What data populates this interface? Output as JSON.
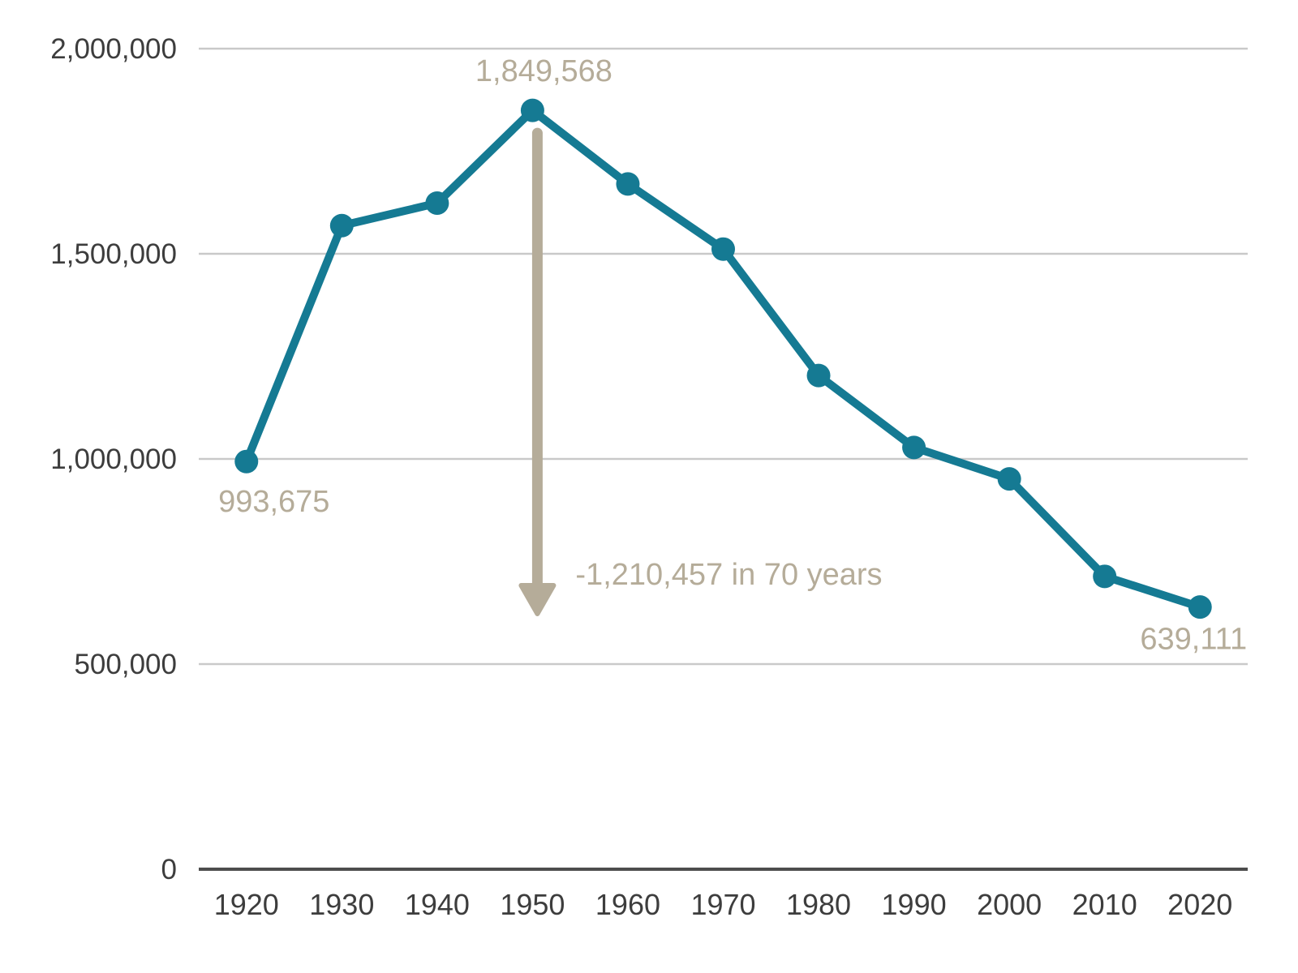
{
  "colors": {
    "line": "#157a93",
    "point": "#157a93",
    "annotation": "#b5ac99",
    "gridline": "#c9c9c9",
    "axis_line": "#4d4d4d",
    "tick_label": "#3d3d3d",
    "background": "#ffffff"
  },
  "chart_data": {
    "type": "line",
    "title": "",
    "xlabel": "",
    "ylabel": "",
    "x": [
      "1920",
      "1930",
      "1940",
      "1950",
      "1960",
      "1970",
      "1980",
      "1990",
      "2000",
      "2010",
      "2020"
    ],
    "values": [
      993675,
      1568662,
      1623452,
      1849568,
      1670144,
      1511482,
      1203339,
      1027974,
      951270,
      713777,
      639111
    ],
    "ylim": [
      0,
      2000000
    ],
    "yticks": [
      0,
      500000,
      1000000,
      1500000,
      2000000
    ],
    "ytick_labels": [
      "0",
      "500,000",
      "1,000,000",
      "1,500,000",
      "2,000,000"
    ],
    "grid": true,
    "legend": "none",
    "point_labels": [
      {
        "index": 0,
        "text": "993,675",
        "position": "below"
      },
      {
        "index": 3,
        "text": "1,849,568",
        "position": "above"
      },
      {
        "index": 10,
        "text": "639,111",
        "position": "below-left"
      }
    ],
    "annotation": {
      "text": "-1,210,457 in 70 years",
      "arrow": "down",
      "from_index": 3
    }
  }
}
